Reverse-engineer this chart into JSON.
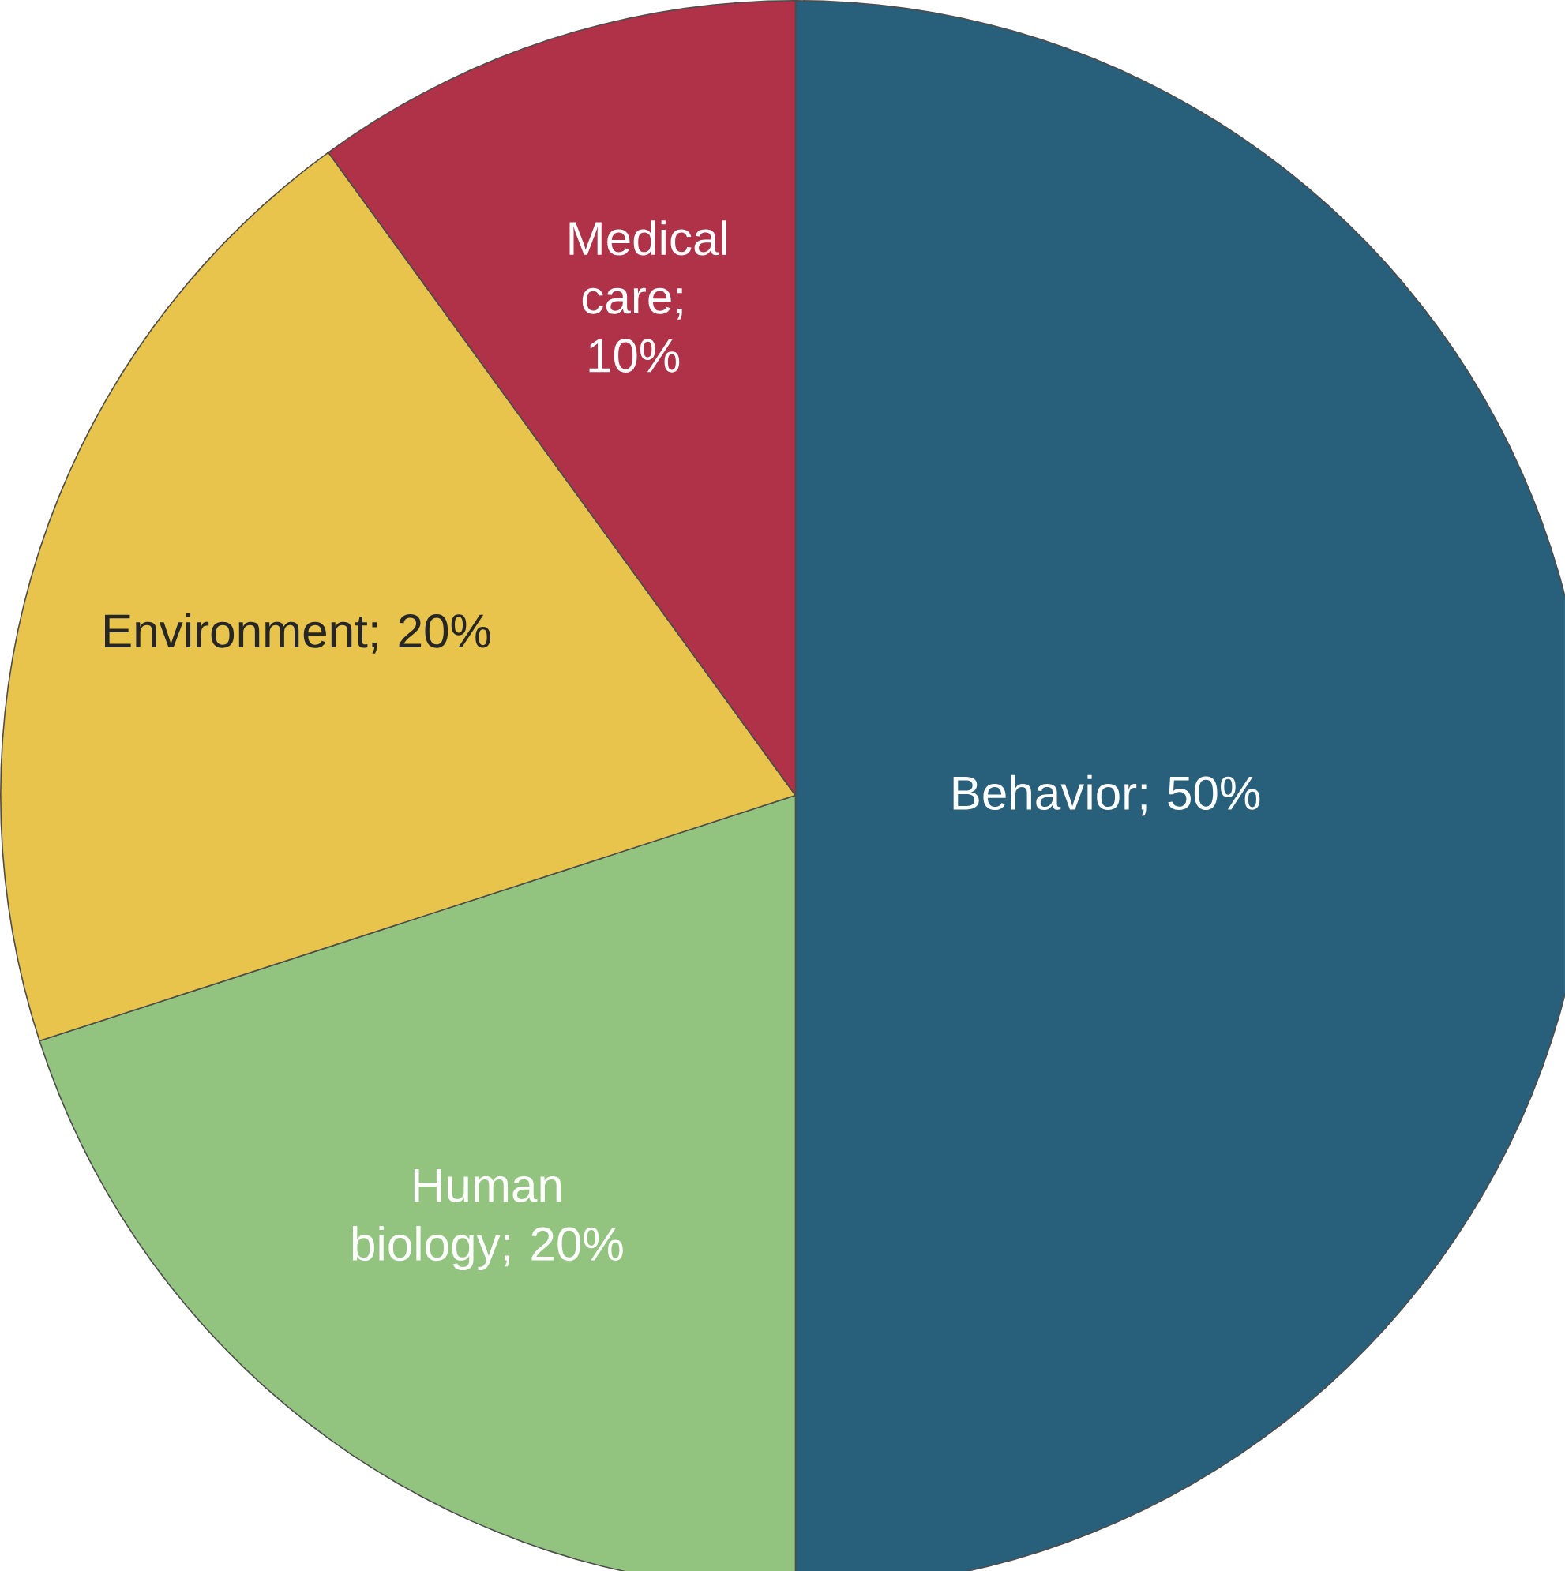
{
  "chart_data": {
    "type": "pie",
    "categories": [
      "Behavior",
      "Human biology",
      "Environment",
      "Medical care"
    ],
    "values": [
      50,
      20,
      20,
      10
    ],
    "value_labels": [
      "; 50%",
      "; 20%",
      "; 20%",
      "; 10%"
    ],
    "colors": [
      "#285f7a",
      "#92c47f",
      "#e8c44c",
      "#b03248"
    ]
  }
}
